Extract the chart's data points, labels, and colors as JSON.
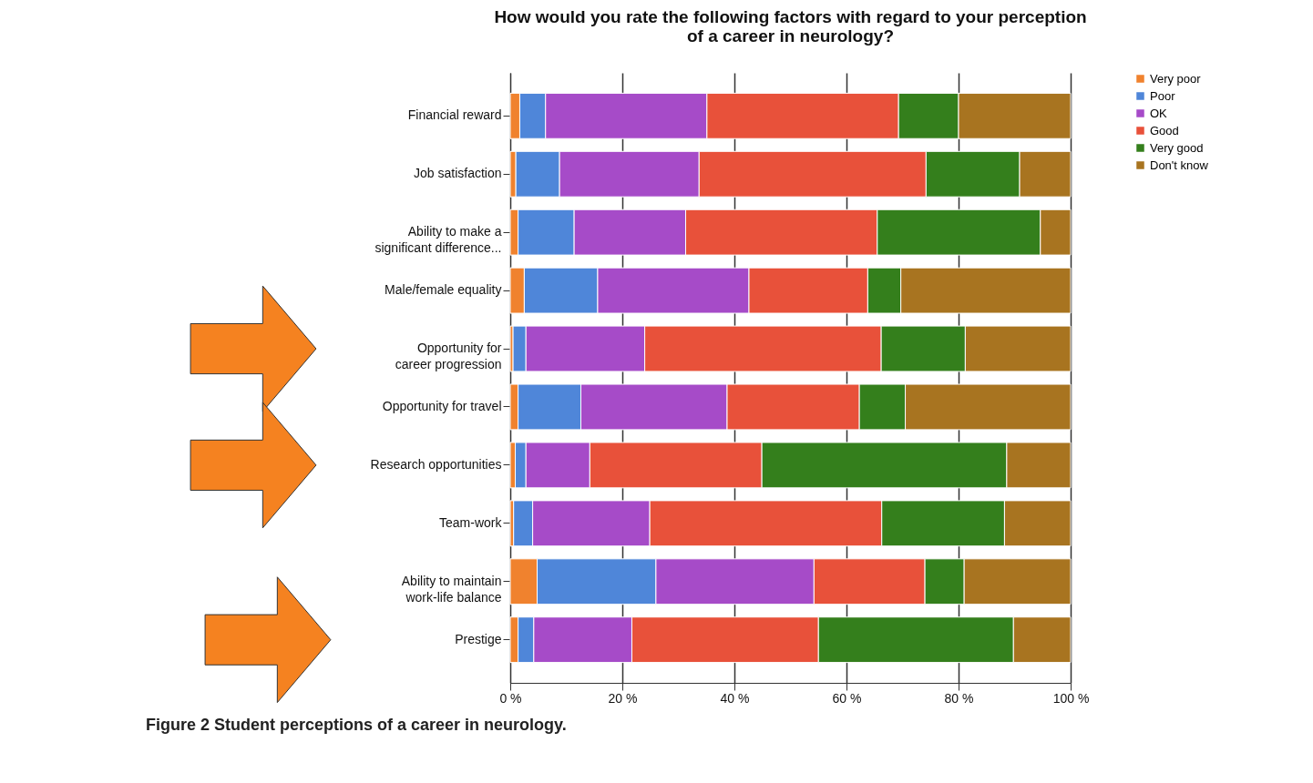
{
  "chart_data": {
    "type": "bar",
    "orientation": "horizontal",
    "stacked": true,
    "title": "How would you rate the following factors with regard to your perception\nof a career in neurology?",
    "categories": [
      "Financial reward",
      "Job satisfaction",
      "Ability to make a\nsignificant difference...",
      "Male/female equality",
      "Opportunity for\ncareer progression",
      "Opportunity for travel",
      "Research opportunities",
      "Team-work",
      "Ability to maintain\nwork-life balance",
      "Prestige"
    ],
    "series": [
      {
        "name": "Very poor",
        "color": "#f0822e",
        "values": [
          1.7,
          1.0,
          1.4,
          2.5,
          0.5,
          1.4,
          0.9,
          0.6,
          4.8,
          1.4
        ]
      },
      {
        "name": "Poor",
        "color": "#4f86d9",
        "values": [
          4.6,
          7.8,
          10.0,
          13.1,
          2.3,
          11.2,
          1.9,
          3.4,
          21.2,
          2.8
        ]
      },
      {
        "name": "OK",
        "color": "#a64bc8",
        "values": [
          28.8,
          24.9,
          19.9,
          27.0,
          21.2,
          26.1,
          11.4,
          20.9,
          28.2,
          17.5
        ]
      },
      {
        "name": "Good",
        "color": "#e8513a",
        "values": [
          34.2,
          40.5,
          34.2,
          21.2,
          42.2,
          23.6,
          30.7,
          41.4,
          19.8,
          33.3
        ]
      },
      {
        "name": "Very good",
        "color": "#347f1c",
        "values": [
          10.7,
          16.7,
          29.1,
          5.9,
          15.0,
          8.2,
          43.7,
          21.9,
          7.0,
          34.8
        ]
      },
      {
        "name": "Don't know",
        "color": "#a87420",
        "values": [
          20.0,
          9.1,
          5.4,
          30.3,
          18.8,
          29.5,
          11.4,
          11.8,
          19.0,
          10.2
        ]
      }
    ],
    "xlim": [
      0,
      100
    ],
    "xticks": [
      {
        "value": 0,
        "label": "0 %"
      },
      {
        "value": 20,
        "label": "20 %"
      },
      {
        "value": 40,
        "label": "40 %"
      },
      {
        "value": 60,
        "label": "60 %"
      },
      {
        "value": 80,
        "label": "80 %"
      },
      {
        "value": 100,
        "label": "100 %"
      }
    ],
    "grid": "x",
    "legend": "right",
    "annotations": [
      "Figure 2 Student perceptions of a career in neurology."
    ]
  }
}
